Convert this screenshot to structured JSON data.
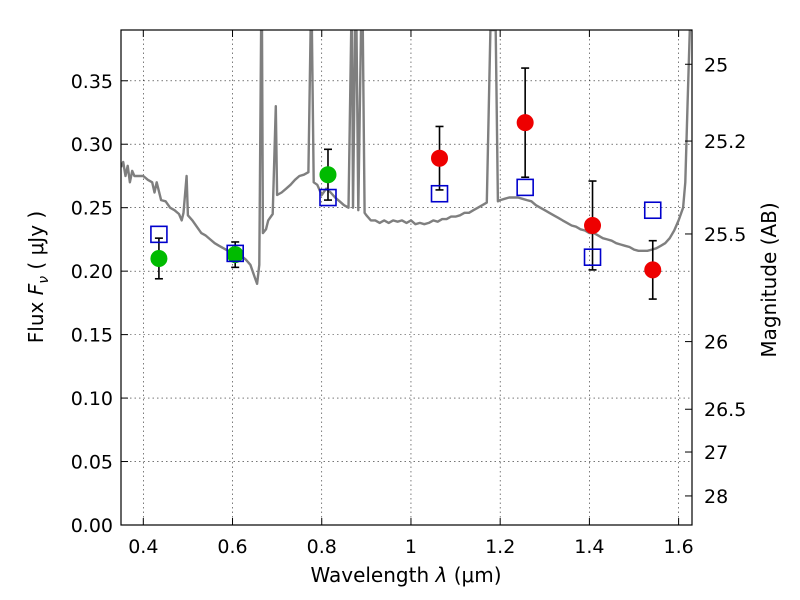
{
  "chart_data": {
    "type": "scatter",
    "xlabel_prefix": "Wavelength",
    "xlabel_symbol": "λ",
    "xlabel_unit": "(μm)",
    "ylabel_prefix": "Flux",
    "ylabel_symbol": "F",
    "ylabel_subscript": "ν",
    "ylabel_unit": "( μJy )",
    "y2label": "Magnitude (AB)",
    "xlim": [
      0.35,
      1.63
    ],
    "ylim": [
      0.0,
      0.39
    ],
    "grid": true,
    "x_ticks": [
      0.4,
      0.6,
      0.8,
      1.0,
      1.2,
      1.4,
      1.6
    ],
    "x_tick_labels": [
      "0.4",
      "0.6",
      "0.8",
      "1",
      "1.2",
      "1.4",
      "1.6"
    ],
    "y_ticks": [
      0.0,
      0.05,
      0.1,
      0.15,
      0.2,
      0.25,
      0.3,
      0.35
    ],
    "y_tick_labels": [
      "0.00",
      "0.05",
      "0.10",
      "0.15",
      "0.20",
      "0.25",
      "0.30",
      "0.35"
    ],
    "y2_ticks": [
      {
        "label": "25",
        "flux": 0.363
      },
      {
        "label": "25.2",
        "flux": 0.3025
      },
      {
        "label": "25.5",
        "flux": 0.2293
      },
      {
        "label": "26",
        "flux": 0.1445
      },
      {
        "label": "26.5",
        "flux": 0.0912
      },
      {
        "label": "27",
        "flux": 0.0575
      },
      {
        "label": "28",
        "flux": 0.0229
      }
    ],
    "series": [
      {
        "marker": "circle",
        "color": "#00bb00",
        "points": [
          {
            "x": 0.435,
            "y": 0.21,
            "err": 0.016
          },
          {
            "x": 0.606,
            "y": 0.213,
            "err": 0.01
          },
          {
            "x": 0.814,
            "y": 0.276,
            "err": 0.02
          }
        ]
      },
      {
        "marker": "circle",
        "color": "#ee0000",
        "points": [
          {
            "x": 1.064,
            "y": 0.289,
            "err": 0.025
          },
          {
            "x": 1.256,
            "y": 0.317,
            "err": 0.043
          },
          {
            "x": 1.407,
            "y": 0.236,
            "err": 0.035
          },
          {
            "x": 1.542,
            "y": 0.201,
            "err": 0.023
          }
        ]
      },
      {
        "marker": "open-square",
        "color": "#0000cc",
        "points": [
          {
            "x": 0.435,
            "y": 0.229
          },
          {
            "x": 0.606,
            "y": 0.214
          },
          {
            "x": 0.814,
            "y": 0.258
          },
          {
            "x": 1.064,
            "y": 0.261
          },
          {
            "x": 1.256,
            "y": 0.266
          },
          {
            "x": 1.407,
            "y": 0.211
          },
          {
            "x": 1.542,
            "y": 0.248
          }
        ]
      }
    ],
    "spectrum": {
      "color": "#7f7f7f",
      "points": [
        [
          0.35,
          0.282
        ],
        [
          0.355,
          0.286
        ],
        [
          0.36,
          0.275
        ],
        [
          0.365,
          0.283
        ],
        [
          0.37,
          0.27
        ],
        [
          0.375,
          0.279
        ],
        [
          0.38,
          0.275
        ],
        [
          0.39,
          0.275
        ],
        [
          0.4,
          0.275
        ],
        [
          0.41,
          0.272
        ],
        [
          0.42,
          0.27
        ],
        [
          0.425,
          0.262
        ],
        [
          0.43,
          0.27
        ],
        [
          0.435,
          0.263
        ],
        [
          0.44,
          0.256
        ],
        [
          0.45,
          0.255
        ],
        [
          0.46,
          0.25
        ],
        [
          0.47,
          0.248
        ],
        [
          0.48,
          0.245
        ],
        [
          0.486,
          0.24
        ],
        [
          0.49,
          0.246
        ],
        [
          0.497,
          0.275
        ],
        [
          0.5,
          0.244
        ],
        [
          0.51,
          0.24
        ],
        [
          0.52,
          0.235
        ],
        [
          0.53,
          0.23
        ],
        [
          0.54,
          0.228
        ],
        [
          0.55,
          0.225
        ],
        [
          0.56,
          0.222
        ],
        [
          0.57,
          0.22
        ],
        [
          0.58,
          0.218
        ],
        [
          0.59,
          0.216
        ],
        [
          0.6,
          0.215
        ],
        [
          0.61,
          0.214
        ],
        [
          0.62,
          0.212
        ],
        [
          0.63,
          0.209
        ],
        [
          0.64,
          0.205
        ],
        [
          0.65,
          0.195
        ],
        [
          0.655,
          0.19
        ],
        [
          0.66,
          0.205
        ],
        [
          0.664,
          0.39
        ],
        [
          0.666,
          0.39
        ],
        [
          0.668,
          0.23
        ],
        [
          0.675,
          0.233
        ],
        [
          0.68,
          0.24
        ],
        [
          0.69,
          0.245
        ],
        [
          0.697,
          0.33
        ],
        [
          0.7,
          0.26
        ],
        [
          0.71,
          0.262
        ],
        [
          0.72,
          0.265
        ],
        [
          0.73,
          0.268
        ],
        [
          0.74,
          0.272
        ],
        [
          0.75,
          0.275
        ],
        [
          0.76,
          0.276
        ],
        [
          0.77,
          0.278
        ],
        [
          0.775,
          0.39
        ],
        [
          0.778,
          0.39
        ],
        [
          0.782,
          0.27
        ],
        [
          0.79,
          0.268
        ],
        [
          0.8,
          0.26
        ],
        [
          0.81,
          0.265
        ],
        [
          0.82,
          0.262
        ],
        [
          0.83,
          0.258
        ],
        [
          0.84,
          0.255
        ],
        [
          0.85,
          0.252
        ],
        [
          0.86,
          0.25
        ],
        [
          0.866,
          0.39
        ],
        [
          0.868,
          0.39
        ],
        [
          0.87,
          0.25
        ],
        [
          0.875,
          0.39
        ],
        [
          0.878,
          0.39
        ],
        [
          0.882,
          0.248
        ],
        [
          0.888,
          0.39
        ],
        [
          0.892,
          0.39
        ],
        [
          0.896,
          0.246
        ],
        [
          0.9,
          0.244
        ],
        [
          0.91,
          0.24
        ],
        [
          0.92,
          0.24
        ],
        [
          0.93,
          0.238
        ],
        [
          0.94,
          0.24
        ],
        [
          0.95,
          0.238
        ],
        [
          0.96,
          0.24
        ],
        [
          0.97,
          0.239
        ],
        [
          0.98,
          0.24
        ],
        [
          0.99,
          0.238
        ],
        [
          1.0,
          0.24
        ],
        [
          1.01,
          0.237
        ],
        [
          1.02,
          0.238
        ],
        [
          1.03,
          0.237
        ],
        [
          1.04,
          0.238
        ],
        [
          1.05,
          0.24
        ],
        [
          1.06,
          0.239
        ],
        [
          1.07,
          0.241
        ],
        [
          1.08,
          0.241
        ],
        [
          1.09,
          0.243
        ],
        [
          1.1,
          0.243
        ],
        [
          1.11,
          0.244
        ],
        [
          1.12,
          0.246
        ],
        [
          1.13,
          0.246
        ],
        [
          1.14,
          0.248
        ],
        [
          1.15,
          0.25
        ],
        [
          1.16,
          0.252
        ],
        [
          1.17,
          0.254
        ],
        [
          1.178,
          0.39
        ],
        [
          1.18,
          0.39
        ],
        [
          1.19,
          0.39
        ],
        [
          1.195,
          0.255
        ],
        [
          1.2,
          0.256
        ],
        [
          1.21,
          0.257
        ],
        [
          1.22,
          0.258
        ],
        [
          1.23,
          0.258
        ],
        [
          1.24,
          0.258
        ],
        [
          1.25,
          0.257
        ],
        [
          1.26,
          0.256
        ],
        [
          1.27,
          0.255
        ],
        [
          1.28,
          0.252
        ],
        [
          1.29,
          0.25
        ],
        [
          1.3,
          0.248
        ],
        [
          1.31,
          0.246
        ],
        [
          1.32,
          0.244
        ],
        [
          1.33,
          0.242
        ],
        [
          1.34,
          0.24
        ],
        [
          1.35,
          0.238
        ],
        [
          1.36,
          0.236
        ],
        [
          1.37,
          0.235
        ],
        [
          1.38,
          0.233
        ],
        [
          1.39,
          0.232
        ],
        [
          1.4,
          0.23
        ],
        [
          1.41,
          0.23
        ],
        [
          1.42,
          0.228
        ],
        [
          1.43,
          0.226
        ],
        [
          1.44,
          0.225
        ],
        [
          1.45,
          0.224
        ],
        [
          1.46,
          0.222
        ],
        [
          1.47,
          0.221
        ],
        [
          1.48,
          0.22
        ],
        [
          1.49,
          0.219
        ],
        [
          1.5,
          0.217
        ],
        [
          1.51,
          0.216
        ],
        [
          1.52,
          0.216
        ],
        [
          1.53,
          0.216
        ],
        [
          1.54,
          0.217
        ],
        [
          1.55,
          0.218
        ],
        [
          1.56,
          0.22
        ],
        [
          1.57,
          0.222
        ],
        [
          1.58,
          0.226
        ],
        [
          1.59,
          0.232
        ],
        [
          1.6,
          0.24
        ],
        [
          1.61,
          0.25
        ],
        [
          1.615,
          0.27
        ],
        [
          1.62,
          0.33
        ],
        [
          1.625,
          0.39
        ],
        [
          1.63,
          0.39
        ]
      ]
    }
  }
}
